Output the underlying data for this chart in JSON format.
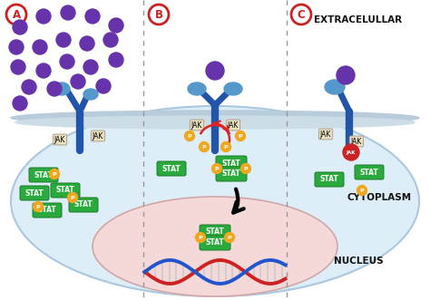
{
  "bg_color": "#ffffff",
  "cell_bg": "#ddeef8",
  "cell_border": "#aac8e0",
  "membrane_color": "#c8dcea",
  "nucleus_bg": "#f5d8d8",
  "nucleus_border": "#d0a8a8",
  "extracelullar_label": "EXTRACELULLAR",
  "cytoplasm_label": "CYTOPLASM",
  "nucleus_label": "NUCLEUS",
  "section_labels": [
    "A",
    "B",
    "C"
  ],
  "label_circle_color": "#cc2222",
  "stat_color": "#2aaa3c",
  "stat_border": "#1a7a28",
  "phospho_color": "#f0a820",
  "receptor_color": "#2255aa",
  "receptor_head_color": "#5599cc",
  "ligand_color": "#6633aa",
  "arrow_color": "#222222",
  "inhibitor_color": "#cc2222",
  "jak_bg": "#e8e0c0",
  "jak_border": "#b8a890",
  "dna_red": "#cc2222",
  "dna_blue": "#2255cc",
  "dna_rung": "#cccccc",
  "divider_color": "#999999",
  "red_arrow_color": "#dd2222",
  "label_color_ext": "#111111",
  "label_color_cyto": "#111111",
  "label_color_nuc": "#111111"
}
